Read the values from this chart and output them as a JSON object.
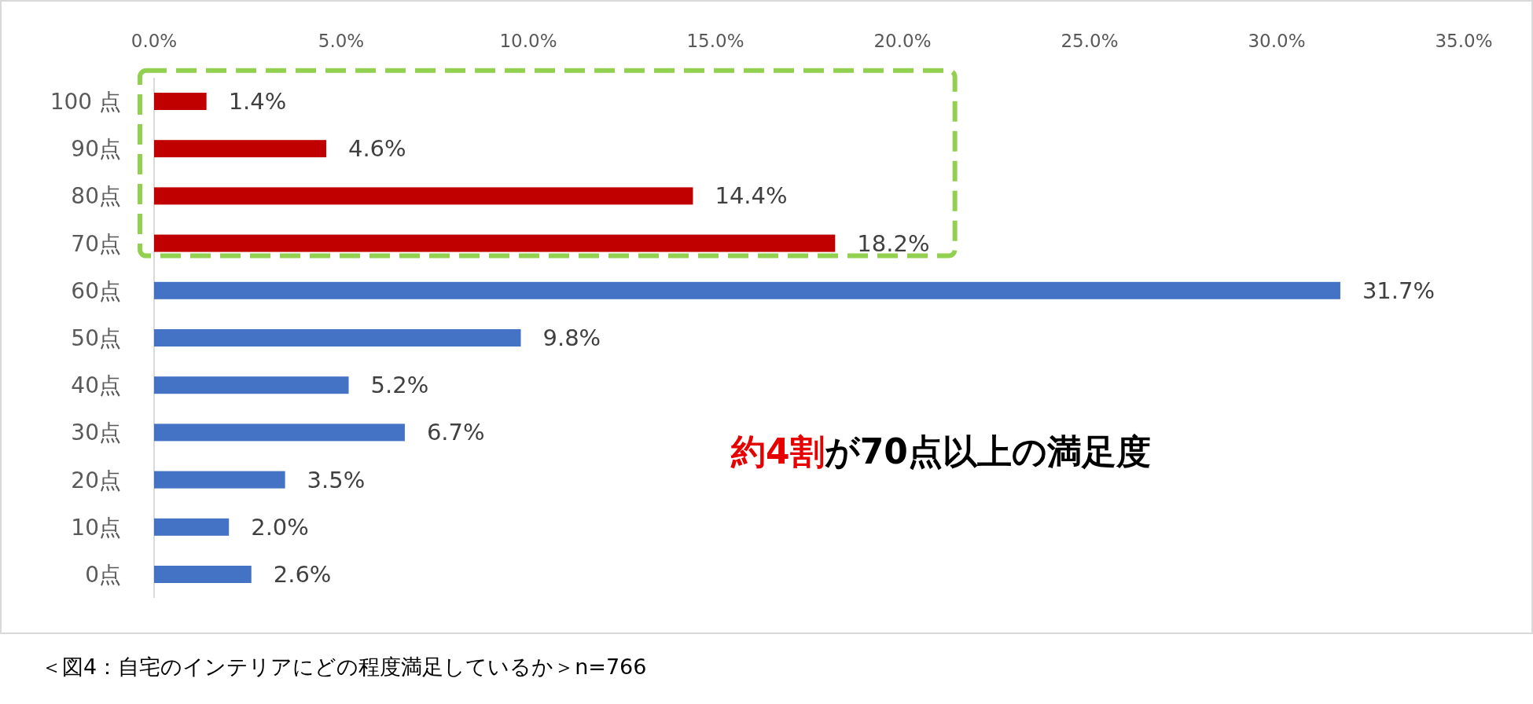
{
  "chart_data": {
    "type": "bar",
    "orientation": "horizontal",
    "categories": [
      "100 点",
      "90点",
      "80点",
      "70点",
      "60点",
      "50点",
      "40点",
      "30点",
      "20点",
      "10点",
      "0点"
    ],
    "values": [
      1.4,
      4.6,
      14.4,
      18.2,
      31.7,
      9.8,
      5.2,
      6.7,
      3.5,
      2.0,
      2.6
    ],
    "colors": [
      "#c00000",
      "#c00000",
      "#c00000",
      "#c00000",
      "#4472c4",
      "#4472c4",
      "#4472c4",
      "#4472c4",
      "#4472c4",
      "#4472c4",
      "#4472c4"
    ],
    "value_labels": [
      "1.4%",
      "4.6%",
      "14.4%",
      "18.2%",
      "31.7%",
      "9.8%",
      "5.2%",
      "6.7%",
      "3.5%",
      "2.0%",
      "2.6%"
    ],
    "xlim": [
      0,
      35
    ],
    "xticks": [
      {
        "value": 0,
        "label": "0.0%"
      },
      {
        "value": 5,
        "label": "5.0%"
      },
      {
        "value": 10,
        "label": "10.0%"
      },
      {
        "value": 15,
        "label": "15.0%"
      },
      {
        "value": 20,
        "label": "20.0%"
      },
      {
        "value": 25,
        "label": "25.0%"
      },
      {
        "value": 30,
        "label": "30.0%"
      },
      {
        "value": 35,
        "label": "35.0%"
      }
    ],
    "annotations": [
      "約4割",
      "が70点以上の満足度",
      "＜図4：自宅のインテリアにどの程度満足しているか＞n=766"
    ]
  }
}
